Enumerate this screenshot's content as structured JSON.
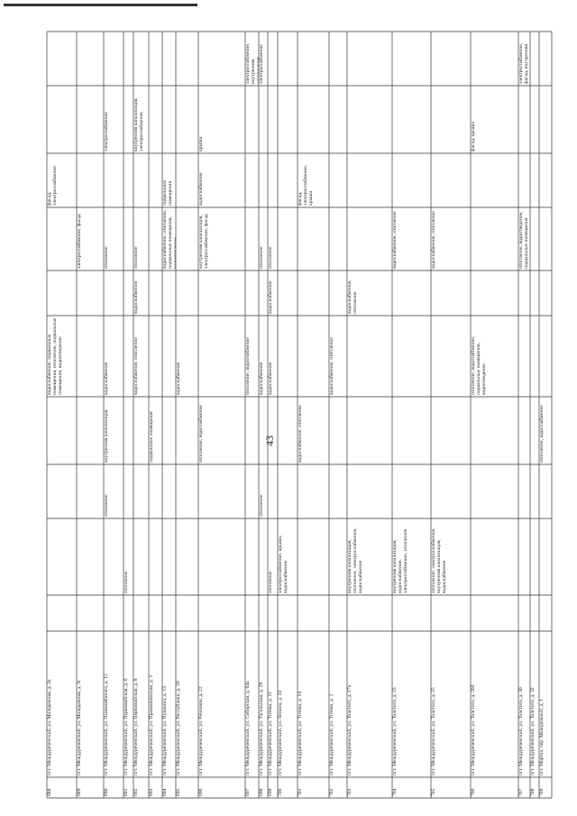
{
  "page_number": "43",
  "table": {
    "rows": [
      {
        "number": "688",
        "address": "пгт. Междуреченский, ул. Молодежная, д. 3а",
        "cells": [
          null,
          null,
          null,
          null,
          "водоснабжение, подвальные помещения, отопление, подвальные помещения, водоотведение",
          null,
          null,
          "фасад, электроснабжение",
          null,
          null
        ]
      },
      {
        "number": "689",
        "address": "пгт. Междуреченский, ул. Молодежная, д. 3г",
        "cells": [
          null,
          null,
          null,
          null,
          null,
          null,
          "электроснабжение, фасад",
          null,
          null,
          null
        ]
      },
      {
        "number": "690",
        "address": "пгт. Междуреченский, ул. Лыжкомбината, д. 12",
        "cells": [
          null,
          null,
          "отопление",
          "внутренняя канализация",
          "водоснабжение",
          null,
          "отопление",
          null,
          "электроснабжение",
          null
        ]
      },
      {
        "number": "691",
        "address": "пгт. Междуреченский, ул. Первомайская, д. 6",
        "cells": [
          null,
          "отопление",
          null,
          null,
          null,
          null,
          null,
          null,
          null,
          null
        ]
      },
      {
        "number": "692",
        "address": "пгт. Междуреченский, ул. Первомайская, д. 8",
        "cells": [
          null,
          null,
          null,
          null,
          "водоснабжение, отопление",
          "водоснабжение",
          "отопление",
          null,
          "внутренняя канализация, электроснабжение",
          null
        ]
      },
      {
        "number": "693",
        "address": "пгт. Междуреченский, ул. Промышленная, д. 1",
        "cells": [
          null,
          null,
          null,
          "подвальные помещения",
          null,
          null,
          null,
          null,
          null,
          null
        ]
      },
      {
        "number": "694",
        "address": "пгт. Междуреченский, ул. Пушкина, д. 13",
        "cells": [
          null,
          null,
          null,
          null,
          null,
          null,
          "водоснабжение, отопление, подвальные помещения, водоотведение",
          "подвальные помещения",
          null,
          null
        ]
      },
      {
        "number": "695",
        "address": "пгт. Междуреченский, ул. Республики, д. 20",
        "cells": [
          null,
          null,
          null,
          null,
          "водоснабжение",
          null,
          null,
          null,
          null,
          null
        ]
      },
      {
        "number": "696",
        "address": "пгт. Междуреченский, ул. Речников, д. 22",
        "cells": [
          null,
          null,
          null,
          "отопление, водоснабжение",
          null,
          null,
          "внутренняя канализация, электроснабжение, фасад",
          "водоснабжение",
          "крыша",
          null
        ]
      },
      {
        "number": "697",
        "address": "пгт. Междуреченский, ул. Сибирская, д. 64а",
        "cells": [
          null,
          null,
          null,
          null,
          "отопление, водоснабжение",
          null,
          null,
          null,
          null,
          "электроснабжение, внутренняя канализация"
        ]
      },
      {
        "number": "698",
        "address": "пгт. Междуреченский, ул. Тагильская, д. 29",
        "cells": [
          null,
          null,
          "отопление",
          null,
          "водоснабжение",
          null,
          "отопление",
          null,
          null,
          "электроснабжение"
        ]
      },
      {
        "number": "699",
        "address": "пгт. Междуреченский, ул. Титова, д. 11",
        "cells": [
          null,
          "отопление",
          null,
          null,
          "водоснабжение",
          "водоснабжение",
          "отопление",
          null,
          null,
          null
        ]
      },
      {
        "number": "700",
        "address": "пгт. Междуреченский, ул. Ленина, д. 33",
        "cells": [
          null,
          "электроснабжение, крыша, водоснабжение",
          null,
          null,
          null,
          null,
          null,
          null,
          null,
          null
        ]
      },
      {
        "number": "701",
        "address": "пгт. Междуреченский, ул. Титова, д. 14",
        "cells": [
          null,
          null,
          null,
          "водоснабжение, отопление",
          null,
          null,
          null,
          "фасад, электроснабжение, крыша",
          null,
          null
        ]
      },
      {
        "number": "702",
        "address": "пгт. Междуреченский, ул. Титова, д. 2",
        "cells": [
          null,
          null,
          null,
          null,
          "водоснабжение, отопление",
          null,
          null,
          null,
          null,
          null
        ]
      },
      {
        "number": "703",
        "address": "пгт. Междуреченский, ул. Толстого, д. 17а",
        "cells": [
          null,
          "внутренняя канализация, отопление, электроснабжение, водоснабжение",
          null,
          null,
          null,
          "водоснабжение, отопление",
          null,
          null,
          null,
          null
        ]
      },
      {
        "number": "704",
        "address": "пгт. Междуреченский, ул. Толстого, д. 23",
        "cells": [
          null,
          "внутренняя канализация, водоснабжение, электроснабжение, отопление",
          null,
          null,
          null,
          null,
          "водоснабжение, отопление",
          null,
          null,
          null
        ]
      },
      {
        "number": "705",
        "address": "пгт. Междуреченский, ул. Толстого, д. 25",
        "cells": [
          null,
          "отопление, электроснабжение, внутренняя канализация, водоснабжение",
          null,
          null,
          null,
          null,
          "водоснабжение, отопление",
          null,
          null,
          null
        ]
      },
      {
        "number": "706",
        "address": "пгт. Междуреченский, ул. Толстого, д. 26б",
        "cells": [
          null,
          null,
          null,
          null,
          "отопление, водоснабжение, подвальные помещения, водоотведение",
          null,
          null,
          null,
          "фасад, крыша",
          null
        ]
      },
      {
        "number": "707",
        "address": "пгт. Междуреченский, ул. Толстого, д. 30",
        "cells": [
          null,
          null,
          null,
          null,
          null,
          null,
          "отопление, водоотведение, подвальные помещения",
          null,
          null,
          "электроснабжение, фасад, внутренняя канализация"
        ]
      },
      {
        "number": "708",
        "address": "пгт. Междуреченский, ул. Толстого, д. 32",
        "cells": [
          null,
          null,
          null,
          null,
          null,
          null,
          null,
          null,
          null,
          null
        ]
      },
      {
        "number": "709",
        "address": "пгт. Мортка, пер. Молодежный, д. 1",
        "cells": [
          null,
          null,
          null,
          "отопление, водоснабжение",
          null,
          null,
          null,
          null,
          null,
          null
        ]
      }
    ]
  }
}
